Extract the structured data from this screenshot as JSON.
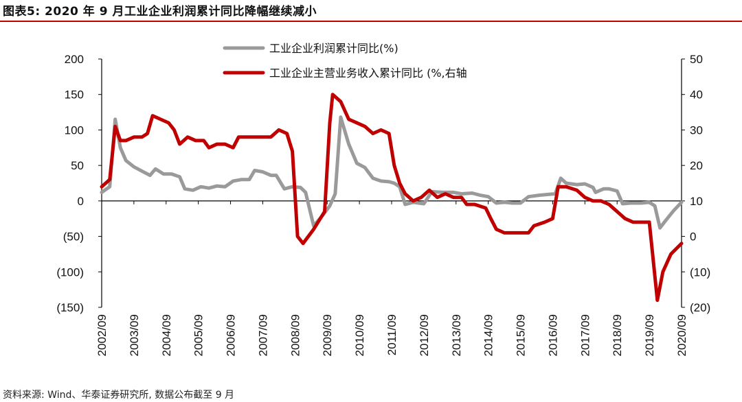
{
  "figure": {
    "title": "图表5: 2020 年 9 月工业企业利润累计同比降幅继续减小",
    "source": "资料来源: Wind、华泰证券研究所, 数据公布截至 9 月",
    "accent_color": "#c00000"
  },
  "chart_data": {
    "type": "line",
    "legend_position": "top-center",
    "grid": false,
    "x_ticks": [
      "2002/09",
      "2003/09",
      "2004/09",
      "2005/09",
      "2006/09",
      "2007/09",
      "2008/09",
      "2009/09",
      "2010/09",
      "2011/09",
      "2012/09",
      "2013/09",
      "2014/09",
      "2015/09",
      "2016/09",
      "2017/09",
      "2018/09",
      "2019/09",
      "2020/09"
    ],
    "x_range": [
      2002.75,
      2020.75
    ],
    "y_left": {
      "range": [
        -150,
        200
      ],
      "ticks": [
        200,
        150,
        100,
        50,
        0,
        -50,
        -100,
        -150
      ],
      "tick_labels": [
        "200",
        "150",
        "100",
        "50",
        "0",
        "(50)",
        "(100)",
        "(150)"
      ]
    },
    "y_right": {
      "range": [
        -20,
        50
      ],
      "ticks": [
        50,
        40,
        30,
        20,
        10,
        0,
        -10,
        -20
      ],
      "tick_labels": [
        "50",
        "40",
        "30",
        "20",
        "10",
        "0",
        "(10)",
        "(20)"
      ]
    },
    "series": [
      {
        "name": "工业企业利润累计同比(%)",
        "axis": "left",
        "color": "#9a9a9a",
        "points": [
          [
            2002.75,
            12
          ],
          [
            2003.0,
            20
          ],
          [
            2003.17,
            115
          ],
          [
            2003.33,
            75
          ],
          [
            2003.5,
            57
          ],
          [
            2003.75,
            48
          ],
          [
            2004.0,
            42
          ],
          [
            2004.25,
            36
          ],
          [
            2004.42,
            45
          ],
          [
            2004.67,
            38
          ],
          [
            2004.92,
            38
          ],
          [
            2005.17,
            34
          ],
          [
            2005.33,
            17
          ],
          [
            2005.58,
            15
          ],
          [
            2005.83,
            20
          ],
          [
            2006.08,
            18
          ],
          [
            2006.33,
            21
          ],
          [
            2006.58,
            20
          ],
          [
            2006.83,
            28
          ],
          [
            2007.08,
            30
          ],
          [
            2007.33,
            30
          ],
          [
            2007.5,
            43
          ],
          [
            2007.75,
            41
          ],
          [
            2008.0,
            36
          ],
          [
            2008.17,
            36
          ],
          [
            2008.42,
            17
          ],
          [
            2008.67,
            20
          ],
          [
            2008.92,
            19
          ],
          [
            2009.08,
            12
          ],
          [
            2009.33,
            -35
          ],
          [
            2009.58,
            -22
          ],
          [
            2009.83,
            -7
          ],
          [
            2010.0,
            10
          ],
          [
            2010.17,
            118
          ],
          [
            2010.42,
            80
          ],
          [
            2010.67,
            53
          ],
          [
            2010.92,
            47
          ],
          [
            2011.17,
            32
          ],
          [
            2011.42,
            28
          ],
          [
            2011.67,
            27
          ],
          [
            2011.83,
            25
          ],
          [
            2012.0,
            20
          ],
          [
            2012.17,
            -5
          ],
          [
            2012.42,
            -2
          ],
          [
            2012.75,
            -4
          ],
          [
            2013.0,
            13
          ],
          [
            2013.33,
            12
          ],
          [
            2013.67,
            12
          ],
          [
            2013.92,
            10
          ],
          [
            2014.25,
            11
          ],
          [
            2014.5,
            8
          ],
          [
            2014.75,
            6
          ],
          [
            2015.0,
            -3
          ],
          [
            2015.25,
            -2
          ],
          [
            2015.5,
            -3
          ],
          [
            2015.75,
            -3
          ],
          [
            2016.0,
            6
          ],
          [
            2016.33,
            8
          ],
          [
            2016.58,
            9
          ],
          [
            2016.83,
            10
          ],
          [
            2017.0,
            32
          ],
          [
            2017.17,
            25
          ],
          [
            2017.5,
            23
          ],
          [
            2017.75,
            24
          ],
          [
            2018.0,
            19
          ],
          [
            2018.08,
            12
          ],
          [
            2018.33,
            17
          ],
          [
            2018.5,
            17
          ],
          [
            2018.75,
            14
          ],
          [
            2018.92,
            -4
          ],
          [
            2019.17,
            -3
          ],
          [
            2019.5,
            -3
          ],
          [
            2019.75,
            -2
          ],
          [
            2019.92,
            -7
          ],
          [
            2020.08,
            -38
          ],
          [
            2020.25,
            -28
          ],
          [
            2020.5,
            -14
          ],
          [
            2020.75,
            -2
          ]
        ]
      },
      {
        "name": "工业企业主营业务收入累计同比 (%,右轴",
        "axis": "right",
        "color": "#c00000",
        "points": [
          [
            2002.75,
            14
          ],
          [
            2003.0,
            16
          ],
          [
            2003.17,
            31
          ],
          [
            2003.33,
            27
          ],
          [
            2003.5,
            27
          ],
          [
            2003.75,
            28
          ],
          [
            2004.0,
            28
          ],
          [
            2004.17,
            29
          ],
          [
            2004.33,
            34
          ],
          [
            2004.58,
            33
          ],
          [
            2004.83,
            32
          ],
          [
            2005.0,
            30
          ],
          [
            2005.17,
            26
          ],
          [
            2005.42,
            28
          ],
          [
            2005.67,
            27
          ],
          [
            2005.92,
            27
          ],
          [
            2006.08,
            25
          ],
          [
            2006.33,
            26
          ],
          [
            2006.58,
            26
          ],
          [
            2006.83,
            25
          ],
          [
            2007.0,
            28
          ],
          [
            2007.42,
            28
          ],
          [
            2007.75,
            28
          ],
          [
            2008.0,
            28
          ],
          [
            2008.25,
            30
          ],
          [
            2008.5,
            29
          ],
          [
            2008.67,
            24
          ],
          [
            2008.83,
            0
          ],
          [
            2009.0,
            -2
          ],
          [
            2009.33,
            2
          ],
          [
            2009.67,
            7
          ],
          [
            2009.83,
            32
          ],
          [
            2009.92,
            40
          ],
          [
            2010.17,
            38
          ],
          [
            2010.42,
            33
          ],
          [
            2010.67,
            32
          ],
          [
            2010.92,
            31
          ],
          [
            2011.17,
            29
          ],
          [
            2011.42,
            30
          ],
          [
            2011.67,
            29
          ],
          [
            2011.83,
            20
          ],
          [
            2012.0,
            15
          ],
          [
            2012.17,
            12
          ],
          [
            2012.42,
            10
          ],
          [
            2012.67,
            11
          ],
          [
            2012.92,
            13
          ],
          [
            2013.17,
            11
          ],
          [
            2013.42,
            12
          ],
          [
            2013.67,
            11
          ],
          [
            2013.92,
            11
          ],
          [
            2014.08,
            9
          ],
          [
            2014.33,
            9
          ],
          [
            2014.67,
            8
          ],
          [
            2014.83,
            5
          ],
          [
            2015.0,
            2
          ],
          [
            2015.25,
            1
          ],
          [
            2015.5,
            1
          ],
          [
            2015.83,
            1
          ],
          [
            2016.0,
            1
          ],
          [
            2016.17,
            3
          ],
          [
            2016.5,
            4
          ],
          [
            2016.75,
            5
          ],
          [
            2016.92,
            14
          ],
          [
            2017.17,
            14
          ],
          [
            2017.5,
            13
          ],
          [
            2017.75,
            11
          ],
          [
            2018.0,
            10
          ],
          [
            2018.25,
            10
          ],
          [
            2018.5,
            9
          ],
          [
            2018.75,
            7
          ],
          [
            2019.0,
            5
          ],
          [
            2019.25,
            4
          ],
          [
            2019.5,
            4
          ],
          [
            2019.75,
            4
          ],
          [
            2020.0,
            -18
          ],
          [
            2020.17,
            -10
          ],
          [
            2020.42,
            -5
          ],
          [
            2020.75,
            -2
          ]
        ]
      }
    ]
  }
}
